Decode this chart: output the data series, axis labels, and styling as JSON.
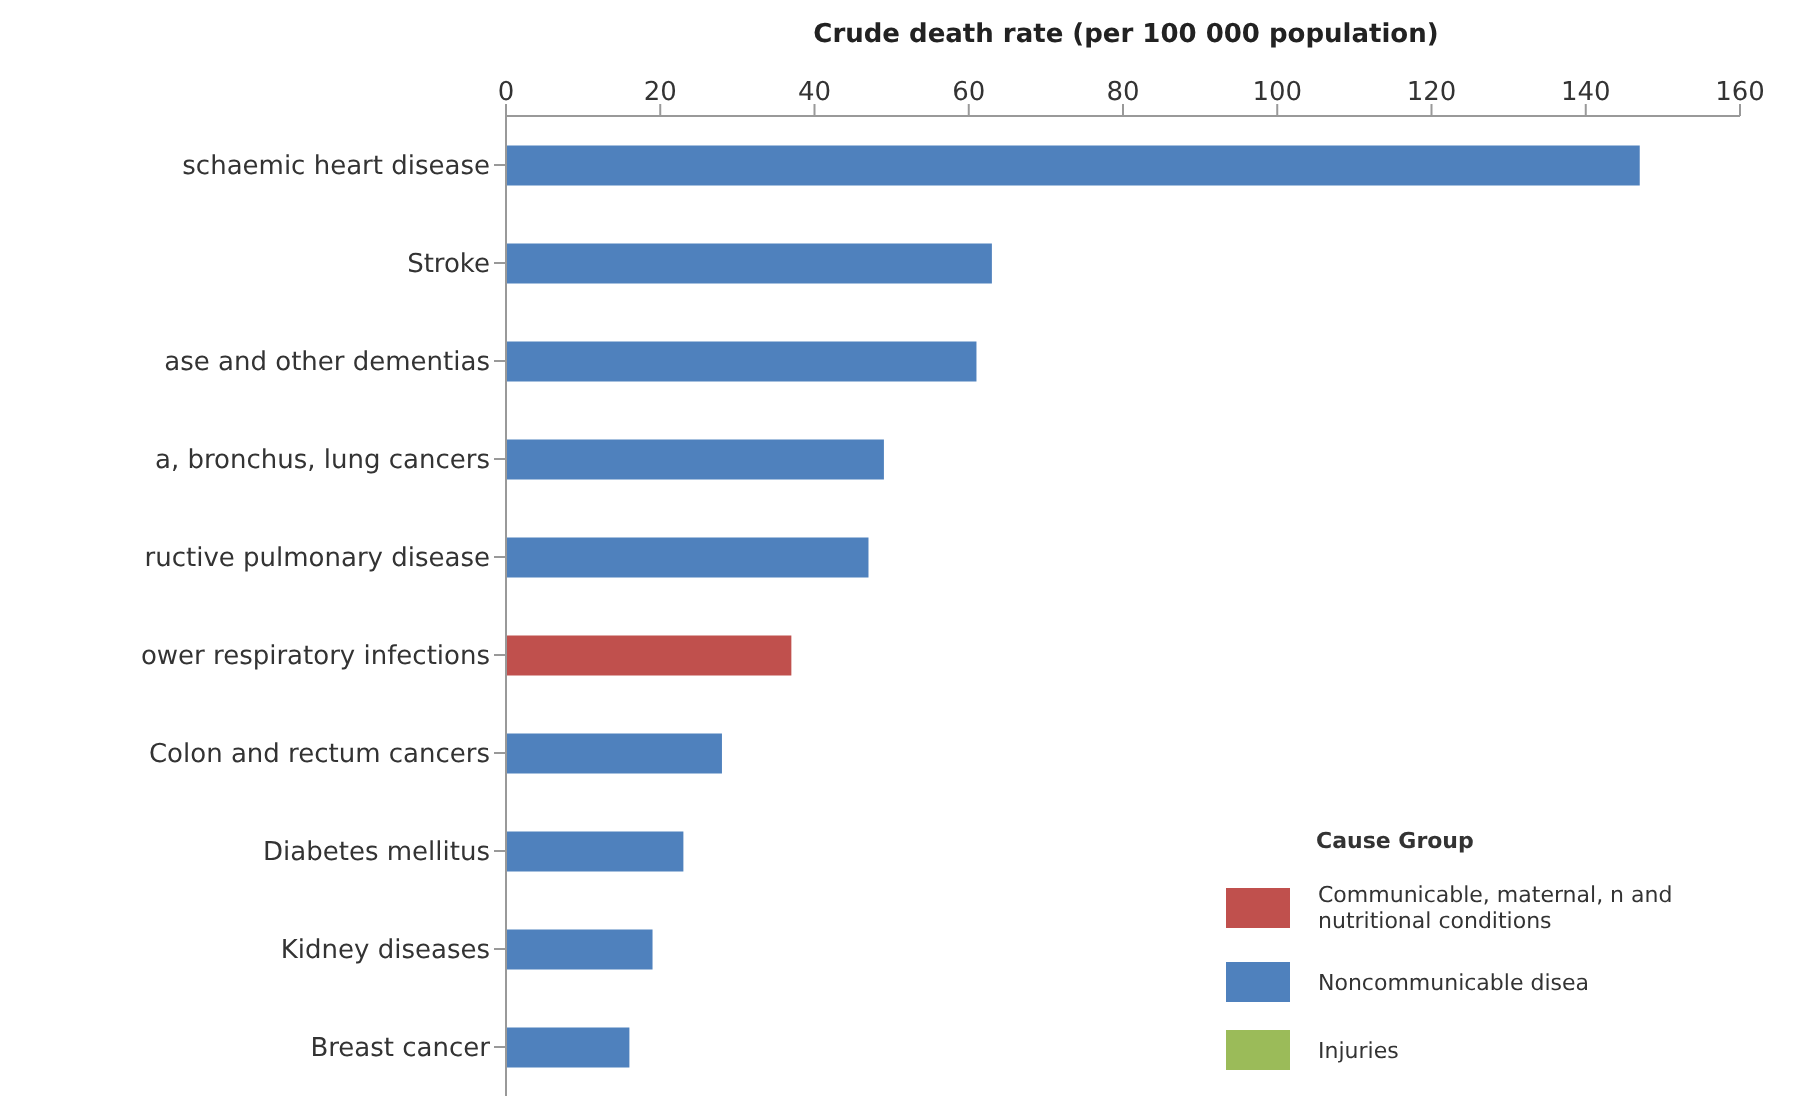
{
  "chart_data": {
    "type": "bar",
    "orientation": "horizontal",
    "stacked": true,
    "xlabel": "Crude death rate (per 100 000 population)",
    "categories": [
      "schaemic heart disease",
      "Stroke",
      "ase and other dementias",
      "a, bronchus, lung cancers",
      "ructive pulmonary disease",
      "ower respiratory infections",
      "Colon and rectum cancers",
      "Diabetes mellitus",
      "Kidney diseases",
      "Breast cancer"
    ],
    "series": [
      {
        "name": "Communicable, maternal, n and nutritional conditions",
        "color": "#c0504d",
        "values": [
          null,
          null,
          null,
          null,
          null,
          37,
          null,
          null,
          null,
          null
        ]
      },
      {
        "name": "Noncommunicable disea",
        "color": "#4f81bd",
        "values": [
          147,
          63,
          61,
          49,
          47,
          null,
          28,
          23,
          19,
          16
        ]
      },
      {
        "name": "Injuries",
        "color": "#9bbb59",
        "values": [
          null,
          null,
          null,
          null,
          null,
          null,
          null,
          null,
          null,
          null
        ]
      }
    ],
    "xlim": [
      0,
      160
    ],
    "xticks": [
      0,
      20,
      40,
      60,
      80,
      100,
      120,
      140,
      160
    ],
    "legend_title": "Cause Group",
    "legend": "bottom right",
    "grid": false
  }
}
